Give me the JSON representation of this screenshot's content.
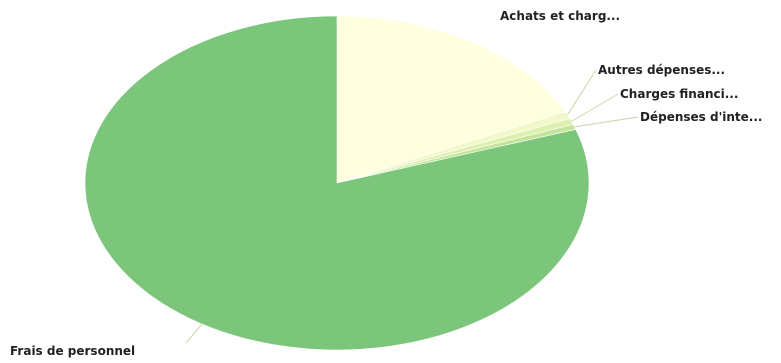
{
  "chart_data": {
    "type": "pie",
    "title": "",
    "slices": [
      {
        "label": "Achats et charg...",
        "value": 18.0,
        "color": "#FFFFE0"
      },
      {
        "label": "Autres dépenses...",
        "value": 0.7,
        "color": "#F2F8C8"
      },
      {
        "label": "Charges financi...",
        "value": 0.6,
        "color": "#DDF0B0"
      },
      {
        "label": "Dépenses d'inte...",
        "value": 0.5,
        "color": "#C3E49A"
      },
      {
        "label": "Frais de personnel",
        "value": 80.2,
        "color": "#7BC67A"
      }
    ],
    "start_angle_deg": 0,
    "direction": "clockwise",
    "legend": "none",
    "labels_outside": true
  }
}
